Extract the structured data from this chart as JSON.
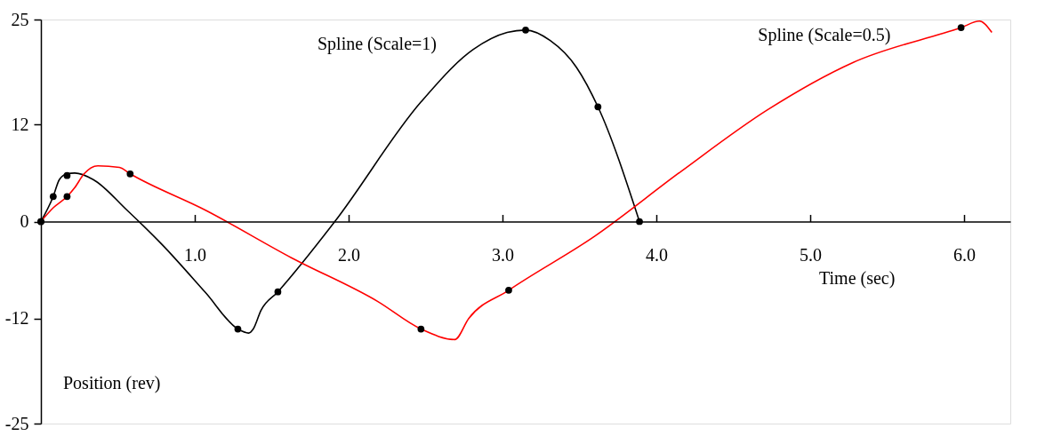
{
  "chart_data": {
    "type": "line",
    "xlabel": "Time (sec)",
    "ylabel": "Position (rev)",
    "xlim": [
      0,
      6.3
    ],
    "ylim": [
      -25,
      25
    ],
    "xticks": [
      {
        "value": 1,
        "label": "1.0"
      },
      {
        "value": 2,
        "label": "2.0"
      },
      {
        "value": 3,
        "label": "3.0"
      },
      {
        "value": 4,
        "label": "4.0"
      },
      {
        "value": 5,
        "label": "5.0"
      },
      {
        "value": 6,
        "label": "6.0"
      }
    ],
    "yticks": [
      -25,
      -12,
      0,
      12,
      25
    ],
    "grid": false,
    "line_style": "solid",
    "series": [
      {
        "name": "Spline (Scale=1)",
        "color": "#000000",
        "x": [
          0,
          0.08,
          0.12,
          0.17,
          0.22,
          0.34,
          0.56,
          0.79,
          1.07,
          1.28,
          1.35,
          1.38,
          1.43,
          1.54,
          1.91,
          2.47,
          2.81,
          3.03,
          3.15,
          3.31,
          3.48,
          3.62,
          3.89
        ],
        "values": [
          0,
          3.1,
          5.2,
          5.9,
          6.0,
          5.2,
          1.4,
          -2.9,
          -8.8,
          -13.3,
          -13.8,
          -13.3,
          -11,
          -8.7,
          0,
          14.8,
          21.3,
          23.4,
          23.7,
          22.4,
          19.1,
          14.2,
          0
        ]
      },
      {
        "name": "Spline (Scale=0.5)",
        "color": "#ff0000",
        "x": [
          0,
          0.08,
          0.17,
          0.22,
          0.28,
          0.37,
          0.51,
          0.58,
          1.07,
          1.63,
          2.19,
          2.47,
          2.69,
          2.78,
          3.04,
          3.6,
          4.16,
          4.72,
          5.28,
          5.98,
          6.1,
          6.18
        ],
        "values": [
          0,
          1.7,
          3.1,
          4.2,
          5.9,
          6.9,
          6.7,
          5.9,
          1.4,
          -4.5,
          -9.9,
          -13.3,
          -14.6,
          -12,
          -8.5,
          -1.8,
          6.2,
          13.8,
          19.7,
          24,
          24.8,
          23.4
        ]
      },
      {
        "type": "scatter",
        "color": "#000000",
        "marker": "circle",
        "x": [
          0,
          0.08,
          0.17,
          1.28,
          1.54,
          3.15,
          3.62,
          3.89
        ],
        "values": [
          0,
          3.1,
          5.7,
          -13.3,
          -8.7,
          23.7,
          14.2,
          0
        ]
      },
      {
        "type": "scatter",
        "color": "#000000",
        "marker": "circle",
        "x": [
          0,
          0.17,
          0.58,
          2.47,
          3.04,
          5.98
        ],
        "values": [
          0,
          3.1,
          5.9,
          -13.3,
          -8.5,
          24
        ]
      }
    ]
  }
}
